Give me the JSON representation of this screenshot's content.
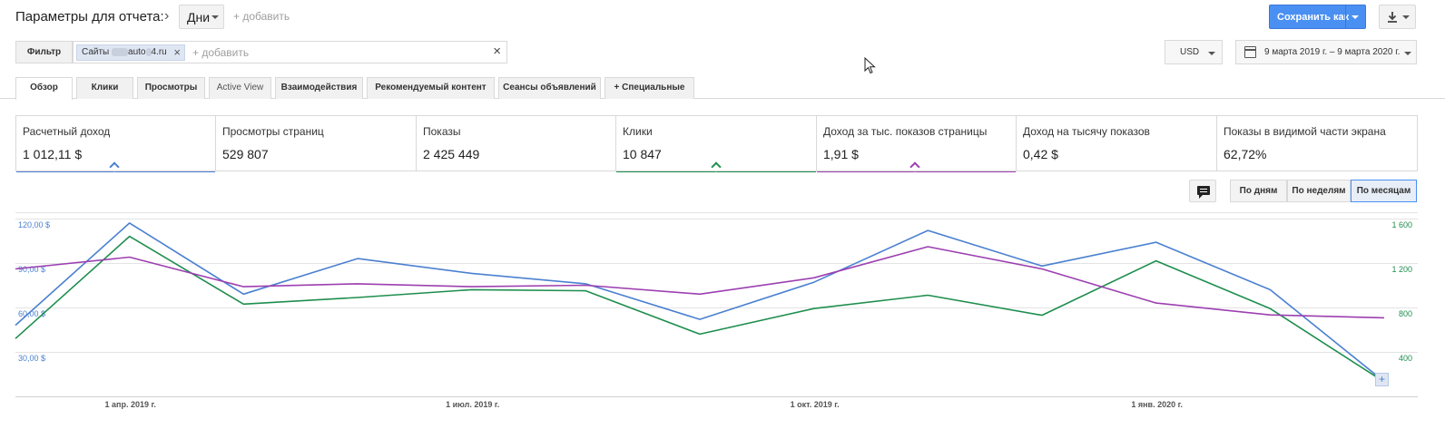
{
  "header": {
    "title": "Параметры для отчета:",
    "dimension": "Дни",
    "add_dimension": "+ добавить",
    "save_label": "Сохранить как"
  },
  "filter": {
    "label": "Фильтр",
    "chip_prefix": "Сайты",
    "chip_mid": "auto",
    "chip_suffix": "4.ru",
    "add_label": "+ добавить",
    "currency": "USD",
    "date_range": "9 марта 2019 г. – 9 марта 2020 г."
  },
  "tabs": [
    {
      "label": "Обзор"
    },
    {
      "label": "Клики"
    },
    {
      "label": "Просмотры"
    },
    {
      "label": "Active View"
    },
    {
      "label": "Взаимодействия"
    },
    {
      "label": "Рекомендуемый контент"
    },
    {
      "label": "Сеансы объявлений"
    },
    {
      "label": "+ Специальные"
    }
  ],
  "scorecards": [
    {
      "label": "Расчетный доход",
      "value": "1 012,11 $",
      "color": "#4a80d0"
    },
    {
      "label": "Просмотры страниц",
      "value": "529 807"
    },
    {
      "label": "Показы",
      "value": "2 425 449"
    },
    {
      "label": "Клики",
      "value": "10 847",
      "color": "#1e8e4e"
    },
    {
      "label": "Доход за тыс. показов страницы",
      "value": "1,91 $",
      "color": "#9c3fb0"
    },
    {
      "label": "Доход на тысячу показов",
      "value": "0,42 $"
    },
    {
      "label": "Показы в видимой части экрана",
      "value": "62,72%"
    }
  ],
  "granularity": {
    "by_day": "По дням",
    "by_week": "По неделям",
    "by_month": "По месяцам",
    "selected": "По месяцам"
  },
  "chart_data": {
    "type": "line",
    "x": [
      "2019-03",
      "2019-04",
      "2019-05",
      "2019-06",
      "2019-07",
      "2019-08",
      "2019-09",
      "2019-10",
      "2019-11",
      "2019-12",
      "2020-01",
      "2020-02",
      "2020-03"
    ],
    "x_tick_labels": [
      "1 апр. 2019 г.",
      "1 июл. 2019 г.",
      "1 окт. 2019 г.",
      "1 янв. 2020 г."
    ],
    "y_left": {
      "ticks": [
        "30,00 $",
        "60,00 $",
        "90,00 $",
        "120,00 $"
      ],
      "range": [
        0,
        120
      ]
    },
    "y_right": {
      "ticks": [
        "400",
        "800",
        "1 200",
        "1 600"
      ],
      "range": [
        0,
        1600
      ]
    },
    "grid": true,
    "series": [
      {
        "name": "Расчетный доход",
        "axis": "left",
        "color": "#4a80d0",
        "values": [
          48,
          117,
          69,
          93,
          83,
          76,
          52,
          77,
          112,
          88,
          104,
          72,
          10
        ]
      },
      {
        "name": "Клики",
        "axis": "right",
        "color": "#1e8e4e",
        "values": [
          520,
          1440,
          830,
          890,
          960,
          950,
          560,
          790,
          910,
          730,
          1220,
          790,
          130
        ]
      },
      {
        "name": "Доход за тыс. показов страницы",
        "axis": "left",
        "color": "#9c3fb0",
        "values": [
          86,
          94,
          74,
          76,
          74,
          75,
          69,
          80,
          101,
          86,
          63,
          55,
          53
        ]
      }
    ]
  }
}
